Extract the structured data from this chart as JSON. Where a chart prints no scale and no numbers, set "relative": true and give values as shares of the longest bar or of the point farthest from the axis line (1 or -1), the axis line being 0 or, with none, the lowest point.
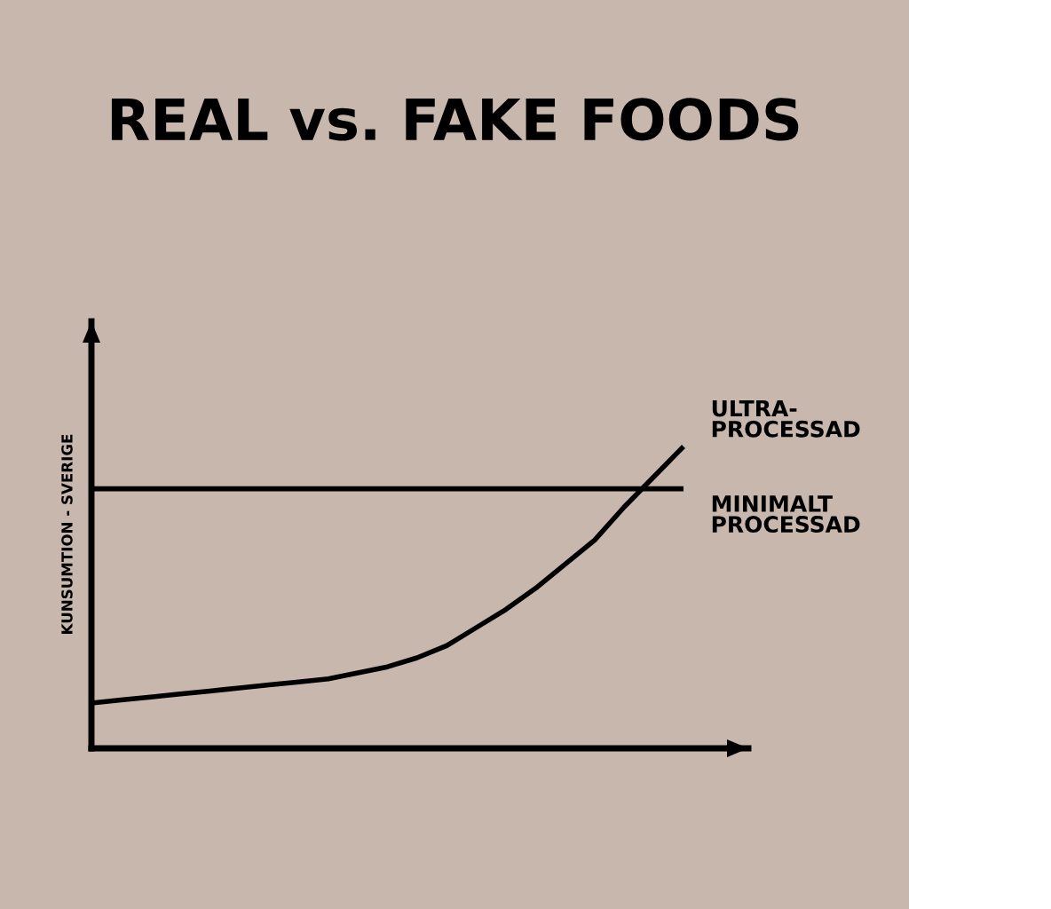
{
  "chart_data": {
    "type": "line",
    "title": "REAL vs. FAKE FOODS",
    "ylabel": "KUNSUMTION - SVERIGE",
    "relative": true,
    "tick_labels": false,
    "marker": "none",
    "line_style": "solid",
    "categories": [
      null,
      null,
      null,
      null,
      null,
      null,
      null,
      null,
      null,
      null,
      null,
      null,
      null,
      null,
      null,
      null,
      null,
      null,
      null,
      null,
      null
    ],
    "series": [
      {
        "name": "ULTRA-\nPROCESSAD",
        "color": "#000000",
        "values": [
          0.15,
          0.16,
          0.17,
          0.18,
          0.19,
          0.2,
          0.21,
          0.22,
          0.23,
          0.25,
          0.27,
          0.3,
          0.34,
          0.4,
          0.46,
          0.53,
          0.61,
          0.69,
          0.8,
          0.9,
          1
        ]
      },
      {
        "name": "MINIMALT\nPROCESSAD",
        "color": "#000000",
        "values": [
          0.86,
          0.86,
          0.86,
          0.86,
          0.86,
          0.86,
          0.86,
          0.86,
          0.86,
          0.86,
          0.86,
          0.86,
          0.86,
          0.86,
          0.86,
          0.86,
          0.86,
          0.86,
          0.86,
          0.86,
          0.86
        ]
      }
    ]
  }
}
